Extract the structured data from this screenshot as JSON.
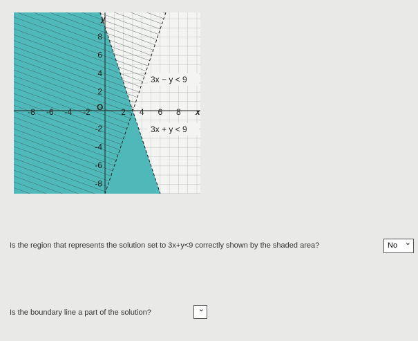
{
  "graph": {
    "x_axis_label": "x",
    "y_axis_label": "y",
    "origin_label": "O",
    "x_tick_labels": [
      "-8",
      "-6",
      "-4",
      "-2",
      "2",
      "4",
      "6",
      "8"
    ],
    "y_tick_labels": [
      "8",
      "6",
      "4",
      "2",
      "-2",
      "-4",
      "-6",
      "-8"
    ],
    "inequality_1": "3x − y < 9",
    "inequality_2": "3x + y < 9"
  },
  "questions": [
    {
      "text": "Is the region that represents the solution set to 3x+y<9 correctly shown by the shaded area?",
      "answer": "No"
    },
    {
      "text": "Is the boundary line a part of the solution?"
    }
  ]
}
